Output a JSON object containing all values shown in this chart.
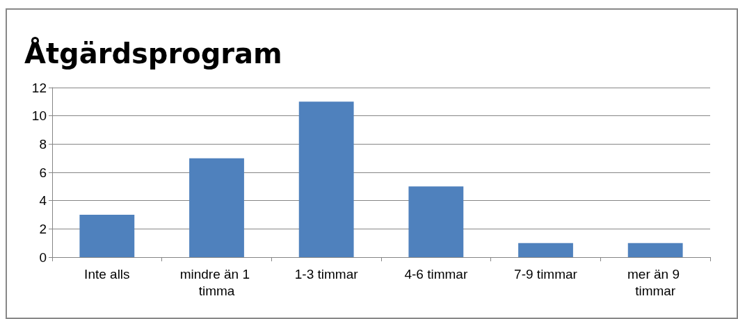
{
  "chart_data": {
    "type": "bar",
    "title": "Åtgärdsprogram",
    "categories": [
      "Inte alls",
      "mindre än 1 timma",
      "1-3 timmar",
      "4-6 timmar",
      "7-9 timmar",
      "mer än 9 timmar"
    ],
    "values": [
      3,
      7,
      11,
      5,
      1,
      1
    ],
    "color": "#4f81bd",
    "ylim": [
      0,
      12
    ],
    "yticks": [
      0,
      2,
      4,
      6,
      8,
      10,
      12
    ],
    "grid": "y"
  }
}
